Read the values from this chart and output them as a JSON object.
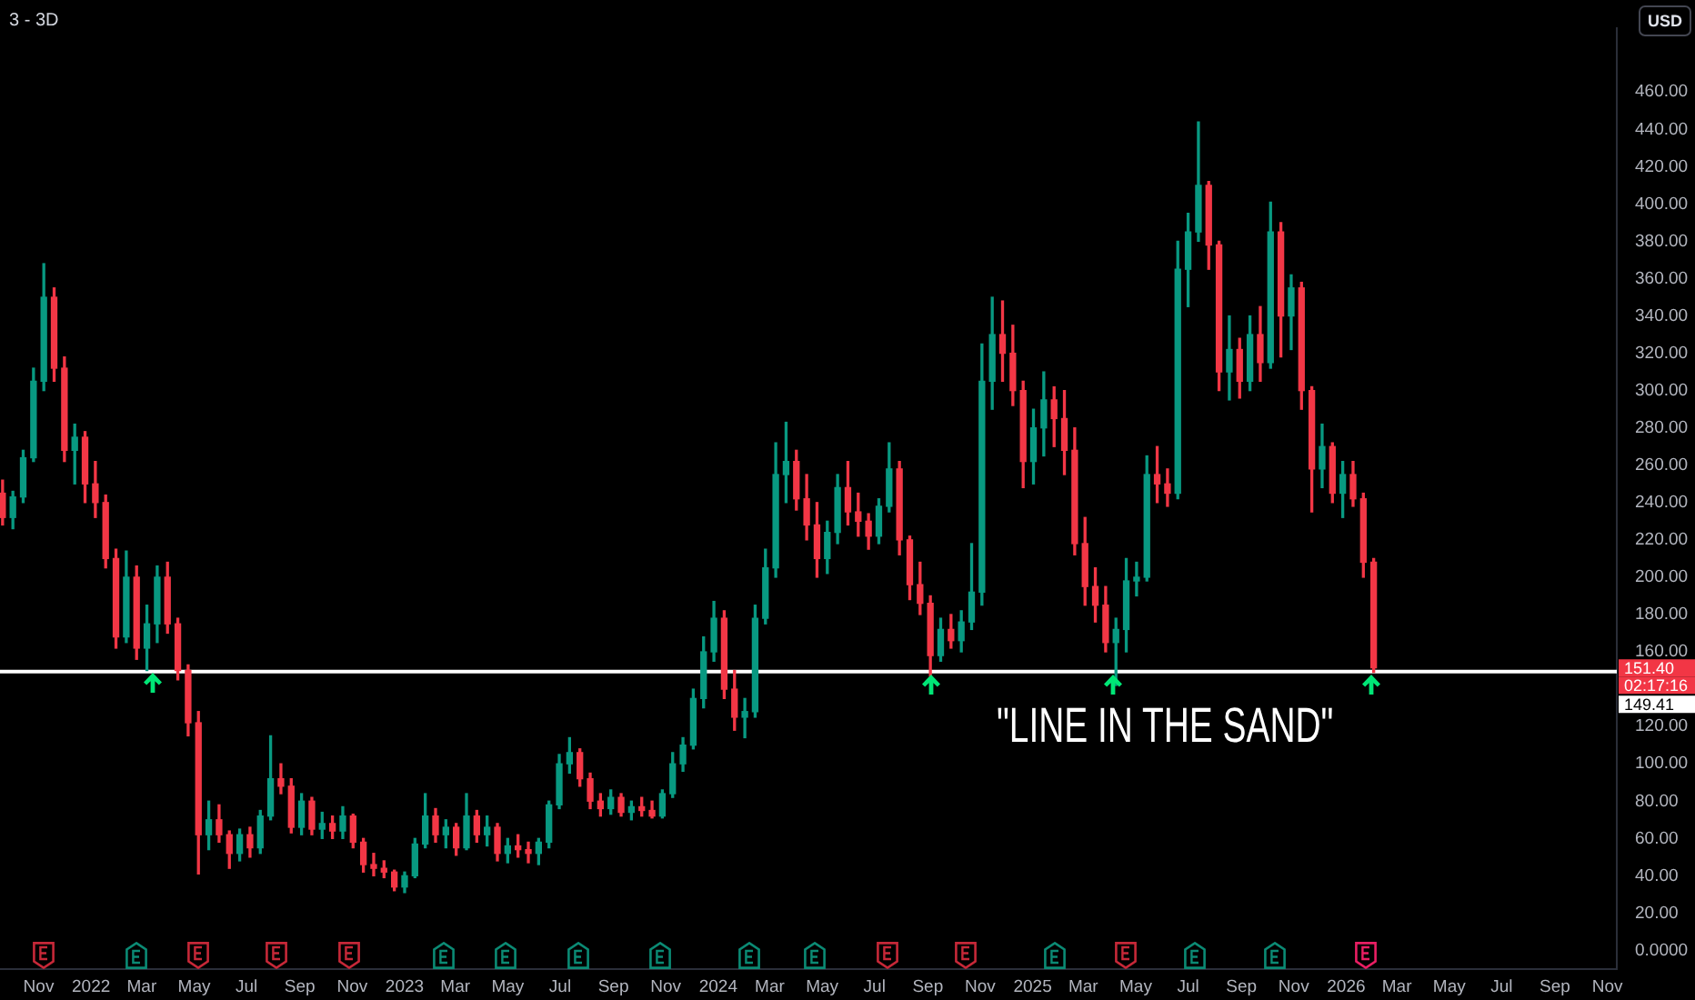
{
  "chart_data": {
    "type": "candlestick",
    "title": "3 - 3D",
    "ylabel": "USD",
    "x": [
      "2021-09-20",
      "2021-10-02",
      "2021-10-14",
      "2021-10-26",
      "2021-11-07",
      "2021-11-19",
      "2021-12-01",
      "2021-12-13",
      "2021-12-25",
      "2022-01-06",
      "2022-01-18",
      "2022-01-30",
      "2022-02-11",
      "2022-02-23",
      "2022-03-07",
      "2022-03-19",
      "2022-03-31",
      "2022-04-12",
      "2022-04-24",
      "2022-05-06",
      "2022-05-18",
      "2022-05-30",
      "2022-06-11",
      "2022-06-23",
      "2022-07-05",
      "2022-07-17",
      "2022-07-29",
      "2022-08-10",
      "2022-08-22",
      "2022-09-03",
      "2022-09-15",
      "2022-09-27",
      "2022-10-09",
      "2022-10-21",
      "2022-11-02",
      "2022-11-14",
      "2022-11-26",
      "2022-12-08",
      "2022-12-20",
      "2023-01-01",
      "2023-01-13",
      "2023-01-25",
      "2023-02-06",
      "2023-02-18",
      "2023-03-02",
      "2023-03-14",
      "2023-03-26",
      "2023-04-07",
      "2023-04-19",
      "2023-05-01",
      "2023-05-13",
      "2023-05-25",
      "2023-06-06",
      "2023-06-18",
      "2023-06-30",
      "2023-07-12",
      "2023-07-24",
      "2023-08-05",
      "2023-08-17",
      "2023-08-29",
      "2023-09-10",
      "2023-09-22",
      "2023-10-04",
      "2023-10-16",
      "2023-10-28",
      "2023-11-09",
      "2023-11-21",
      "2023-12-03",
      "2023-12-15",
      "2023-12-27",
      "2024-01-08",
      "2024-01-20",
      "2024-02-01",
      "2024-02-13",
      "2024-02-25",
      "2024-03-08",
      "2024-03-20",
      "2024-04-01",
      "2024-04-13",
      "2024-04-25",
      "2024-05-07",
      "2024-05-19",
      "2024-05-31",
      "2024-06-12",
      "2024-06-24",
      "2024-07-06",
      "2024-07-18",
      "2024-07-30",
      "2024-08-11",
      "2024-08-23",
      "2024-09-04",
      "2024-09-16",
      "2024-09-28",
      "2024-10-10",
      "2024-10-22",
      "2024-11-03",
      "2024-11-15",
      "2024-11-27",
      "2024-12-09",
      "2024-12-21",
      "2025-01-02",
      "2025-01-14",
      "2025-01-26",
      "2025-02-07",
      "2025-02-19",
      "2025-03-03",
      "2025-03-15",
      "2025-03-27",
      "2025-04-08",
      "2025-04-20",
      "2025-05-02",
      "2025-05-14",
      "2025-05-26",
      "2025-06-07",
      "2025-06-19",
      "2025-07-01",
      "2025-07-13",
      "2025-07-25",
      "2025-08-06",
      "2025-08-18",
      "2025-08-30",
      "2025-09-11",
      "2025-09-23",
      "2025-10-05",
      "2025-10-17",
      "2025-10-29",
      "2025-11-10",
      "2025-11-22",
      "2025-12-04",
      "2025-12-16",
      "2025-12-28",
      "2026-01-09",
      "2026-01-21",
      "2026-02-02"
    ],
    "ohlc": [
      [
        245,
        252,
        228,
        232
      ],
      [
        232,
        246,
        226,
        243
      ],
      [
        243,
        268,
        240,
        264
      ],
      [
        264,
        312,
        262,
        305
      ],
      [
        305,
        368,
        300,
        350
      ],
      [
        350,
        355,
        305,
        312
      ],
      [
        312,
        318,
        262,
        268
      ],
      [
        268,
        282,
        250,
        275
      ],
      [
        275,
        278,
        240,
        250
      ],
      [
        250,
        262,
        232,
        240
      ],
      [
        240,
        244,
        205,
        210
      ],
      [
        210,
        215,
        162,
        168
      ],
      [
        168,
        214,
        165,
        200
      ],
      [
        200,
        206,
        156,
        162
      ],
      [
        162,
        185,
        150,
        175
      ],
      [
        175,
        206,
        165,
        200
      ],
      [
        200,
        208,
        170,
        175
      ],
      [
        175,
        178,
        145,
        150
      ],
      [
        150,
        153,
        115,
        122
      ],
      [
        122,
        128,
        41,
        62
      ],
      [
        62,
        80,
        54,
        70
      ],
      [
        70,
        78,
        58,
        62
      ],
      [
        62,
        64,
        44,
        52
      ],
      [
        52,
        65,
        48,
        62
      ],
      [
        62,
        66,
        50,
        55
      ],
      [
        55,
        75,
        52,
        72
      ],
      [
        72,
        115,
        70,
        92
      ],
      [
        92,
        100,
        84,
        88
      ],
      [
        88,
        92,
        63,
        66
      ],
      [
        66,
        84,
        62,
        80
      ],
      [
        80,
        82,
        62,
        65
      ],
      [
        65,
        74,
        60,
        68
      ],
      [
        68,
        72,
        60,
        64
      ],
      [
        64,
        77,
        60,
        72
      ],
      [
        72,
        73,
        55,
        58
      ],
      [
        58,
        60,
        42,
        46
      ],
      [
        46,
        52,
        40,
        44
      ],
      [
        44,
        48,
        39,
        42
      ],
      [
        42,
        43,
        32,
        34
      ],
      [
        34,
        42,
        31,
        40
      ],
      [
        40,
        60,
        39,
        57
      ],
      [
        57,
        84,
        55,
        72
      ],
      [
        72,
        76,
        58,
        62
      ],
      [
        62,
        70,
        55,
        66
      ],
      [
        66,
        68,
        51,
        55
      ],
      [
        55,
        84,
        54,
        72
      ],
      [
        72,
        75,
        58,
        62
      ],
      [
        62,
        72,
        56,
        66
      ],
      [
        66,
        68,
        48,
        52
      ],
      [
        52,
        60,
        47,
        56
      ],
      [
        56,
        62,
        50,
        54
      ],
      [
        54,
        58,
        47,
        52
      ],
      [
        52,
        60,
        46,
        58
      ],
      [
        58,
        80,
        55,
        78
      ],
      [
        78,
        105,
        76,
        100
      ],
      [
        100,
        114,
        95,
        106
      ],
      [
        106,
        108,
        88,
        92
      ],
      [
        92,
        95,
        76,
        80
      ],
      [
        80,
        84,
        72,
        76
      ],
      [
        76,
        86,
        73,
        82
      ],
      [
        82,
        84,
        72,
        74
      ],
      [
        74,
        80,
        70,
        77
      ],
      [
        77,
        82,
        72,
        75
      ],
      [
        75,
        80,
        71,
        72
      ],
      [
        72,
        86,
        71,
        84
      ],
      [
        84,
        106,
        82,
        100
      ],
      [
        100,
        114,
        96,
        110
      ],
      [
        110,
        140,
        108,
        135
      ],
      [
        135,
        168,
        130,
        160
      ],
      [
        160,
        187,
        155,
        178
      ],
      [
        178,
        182,
        135,
        140
      ],
      [
        140,
        150,
        118,
        125
      ],
      [
        125,
        135,
        114,
        128
      ],
      [
        128,
        185,
        125,
        178
      ],
      [
        178,
        215,
        175,
        205
      ],
      [
        205,
        272,
        200,
        255
      ],
      [
        255,
        283,
        240,
        262
      ],
      [
        262,
        268,
        236,
        242
      ],
      [
        242,
        255,
        220,
        228
      ],
      [
        228,
        240,
        200,
        210
      ],
      [
        210,
        230,
        202,
        224
      ],
      [
        224,
        255,
        218,
        248
      ],
      [
        248,
        262,
        228,
        235
      ],
      [
        235,
        245,
        222,
        230
      ],
      [
        230,
        234,
        215,
        222
      ],
      [
        222,
        242,
        218,
        238
      ],
      [
        238,
        272,
        235,
        258
      ],
      [
        258,
        262,
        212,
        220
      ],
      [
        220,
        222,
        188,
        196
      ],
      [
        196,
        208,
        180,
        186
      ],
      [
        186,
        190,
        147,
        158
      ],
      [
        158,
        178,
        155,
        172
      ],
      [
        172,
        180,
        162,
        166
      ],
      [
        166,
        182,
        160,
        176
      ],
      [
        176,
        218,
        172,
        192
      ],
      [
        192,
        325,
        185,
        305
      ],
      [
        305,
        350,
        290,
        330
      ],
      [
        330,
        348,
        305,
        320
      ],
      [
        320,
        335,
        292,
        300
      ],
      [
        300,
        305,
        248,
        262
      ],
      [
        262,
        290,
        250,
        280
      ],
      [
        280,
        310,
        265,
        295
      ],
      [
        295,
        302,
        270,
        285
      ],
      [
        285,
        300,
        255,
        268
      ],
      [
        268,
        280,
        212,
        218
      ],
      [
        218,
        232,
        185,
        195
      ],
      [
        195,
        205,
        176,
        185
      ],
      [
        185,
        195,
        160,
        165
      ],
      [
        165,
        178,
        142,
        172
      ],
      [
        172,
        210,
        160,
        198
      ],
      [
        198,
        208,
        190,
        200
      ],
      [
        200,
        265,
        198,
        255
      ],
      [
        255,
        270,
        240,
        250
      ],
      [
        250,
        258,
        238,
        245
      ],
      [
        245,
        380,
        242,
        365
      ],
      [
        365,
        395,
        345,
        385
      ],
      [
        385,
        444,
        380,
        410
      ],
      [
        410,
        412,
        365,
        378
      ],
      [
        378,
        380,
        300,
        310
      ],
      [
        310,
        340,
        295,
        322
      ],
      [
        322,
        328,
        296,
        305
      ],
      [
        305,
        340,
        300,
        330
      ],
      [
        330,
        345,
        305,
        315
      ],
      [
        315,
        401,
        312,
        385
      ],
      [
        385,
        390,
        318,
        340
      ],
      [
        340,
        362,
        322,
        355
      ],
      [
        355,
        358,
        290,
        300
      ],
      [
        300,
        302,
        235,
        258
      ],
      [
        258,
        282,
        248,
        270
      ],
      [
        270,
        272,
        240,
        245
      ],
      [
        245,
        262,
        232,
        255
      ],
      [
        255,
        262,
        238,
        242
      ],
      [
        242,
        245,
        200,
        208
      ],
      [
        208,
        210,
        149,
        151.4
      ]
    ],
    "colors": [
      "#f23645",
      "#089981",
      "#089981",
      "#089981",
      "#089981",
      "#f23645",
      "#f23645",
      "#089981",
      "#f23645",
      "#f23645",
      "#f23645",
      "#f23645",
      "#089981",
      "#f23645",
      "#089981",
      "#089981",
      "#f23645",
      "#f23645",
      "#f23645",
      "#f23645",
      "#089981",
      "#f23645",
      "#f23645",
      "#089981",
      "#f23645",
      "#089981",
      "#089981",
      "#f23645",
      "#f23645",
      "#089981",
      "#f23645",
      "#089981",
      "#f23645",
      "#089981",
      "#f23645",
      "#f23645",
      "#f23645",
      "#f23645",
      "#f23645",
      "#089981",
      "#089981",
      "#089981",
      "#f23645",
      "#089981",
      "#f23645",
      "#089981",
      "#f23645",
      "#089981",
      "#f23645",
      "#089981",
      "#f23645",
      "#f23645",
      "#089981",
      "#089981",
      "#089981",
      "#089981",
      "#f23645",
      "#f23645",
      "#f23645",
      "#089981",
      "#f23645",
      "#089981",
      "#f23645",
      "#f23645",
      "#089981",
      "#089981",
      "#089981",
      "#089981",
      "#089981",
      "#089981",
      "#f23645",
      "#f23645",
      "#089981",
      "#089981",
      "#089981",
      "#089981",
      "#089981",
      "#f23645",
      "#f23645",
      "#f23645",
      "#089981",
      "#089981",
      "#f23645",
      "#f23645",
      "#f23645",
      "#089981",
      "#089981",
      "#f23645",
      "#f23645",
      "#f23645",
      "#f23645",
      "#089981",
      "#f23645",
      "#089981",
      "#089981",
      "#089981",
      "#089981",
      "#f23645",
      "#f23645",
      "#f23645",
      "#089981",
      "#089981",
      "#f23645",
      "#f23645",
      "#f23645",
      "#f23645",
      "#f23645",
      "#f23645",
      "#089981",
      "#089981",
      "#089981",
      "#089981",
      "#f23645",
      "#f23645",
      "#089981",
      "#089981",
      "#089981",
      "#f23645",
      "#f23645",
      "#089981",
      "#f23645",
      "#089981",
      "#f23645",
      "#089981",
      "#f23645",
      "#089981",
      "#f23645",
      "#f23645",
      "#089981",
      "#f23645",
      "#089981",
      "#f23645",
      "#f23645",
      "#f23645"
    ],
    "xlim": [
      "2021-09-17",
      "2026-11-12"
    ],
    "xticks": [
      {
        "value": "2021-11-01",
        "label": "Nov"
      },
      {
        "value": "2022-01-01",
        "label": "2022"
      },
      {
        "value": "2022-03-01",
        "label": "Mar"
      },
      {
        "value": "2022-05-01",
        "label": "May"
      },
      {
        "value": "2022-07-01",
        "label": "Jul"
      },
      {
        "value": "2022-09-01",
        "label": "Sep"
      },
      {
        "value": "2022-11-01",
        "label": "Nov"
      },
      {
        "value": "2023-01-01",
        "label": "2023"
      },
      {
        "value": "2023-03-01",
        "label": "Mar"
      },
      {
        "value": "2023-05-01",
        "label": "May"
      },
      {
        "value": "2023-07-01",
        "label": "Jul"
      },
      {
        "value": "2023-09-01",
        "label": "Sep"
      },
      {
        "value": "2023-11-01",
        "label": "Nov"
      },
      {
        "value": "2024-01-01",
        "label": "2024"
      },
      {
        "value": "2024-03-01",
        "label": "Mar"
      },
      {
        "value": "2024-05-01",
        "label": "May"
      },
      {
        "value": "2024-07-01",
        "label": "Jul"
      },
      {
        "value": "2024-09-01",
        "label": "Sep"
      },
      {
        "value": "2024-11-01",
        "label": "Nov"
      },
      {
        "value": "2025-01-01",
        "label": "2025"
      },
      {
        "value": "2025-03-01",
        "label": "Mar"
      },
      {
        "value": "2025-05-01",
        "label": "May"
      },
      {
        "value": "2025-07-01",
        "label": "Jul"
      },
      {
        "value": "2025-09-01",
        "label": "Sep"
      },
      {
        "value": "2025-11-01",
        "label": "Nov"
      },
      {
        "value": "2026-01-01",
        "label": "2026"
      },
      {
        "value": "2026-03-01",
        "label": "Mar"
      },
      {
        "value": "2026-05-01",
        "label": "May"
      },
      {
        "value": "2026-07-01",
        "label": "Jul"
      },
      {
        "value": "2026-09-01",
        "label": "Sep"
      },
      {
        "value": "2026-11-01",
        "label": "Nov"
      }
    ],
    "ylim": [
      -10,
      494
    ],
    "yticks": [
      {
        "value": 0,
        "label": "0.0000"
      },
      {
        "value": 20,
        "label": "20.00"
      },
      {
        "value": 40,
        "label": "40.00"
      },
      {
        "value": 60,
        "label": "60.00"
      },
      {
        "value": 80,
        "label": "80.00"
      },
      {
        "value": 100,
        "label": "100.00"
      },
      {
        "value": 120,
        "label": "120.00"
      },
      {
        "value": 160,
        "label": "160.00"
      },
      {
        "value": 180,
        "label": "180.00"
      },
      {
        "value": 200,
        "label": "200.00"
      },
      {
        "value": 220,
        "label": "220.00"
      },
      {
        "value": 240,
        "label": "240.00"
      },
      {
        "value": 260,
        "label": "260.00"
      },
      {
        "value": 280,
        "label": "280.00"
      },
      {
        "value": 300,
        "label": "300.00"
      },
      {
        "value": 320,
        "label": "320.00"
      },
      {
        "value": 340,
        "label": "340.00"
      },
      {
        "value": 360,
        "label": "360.00"
      },
      {
        "value": 380,
        "label": "380.00"
      },
      {
        "value": 400,
        "label": "400.00"
      },
      {
        "value": 420,
        "label": "420.00"
      },
      {
        "value": 440,
        "label": "440.00"
      },
      {
        "value": 460,
        "label": "460.00"
      }
    ],
    "ref_lines": [
      {
        "axis": "y",
        "value": 149.41,
        "label": "149.41",
        "color": "#ffffff"
      }
    ],
    "annotations": [
      "151.40",
      "02:17:16",
      "\"LINE IN THE SAND\""
    ],
    "grid": false,
    "legend": false
  }
}
